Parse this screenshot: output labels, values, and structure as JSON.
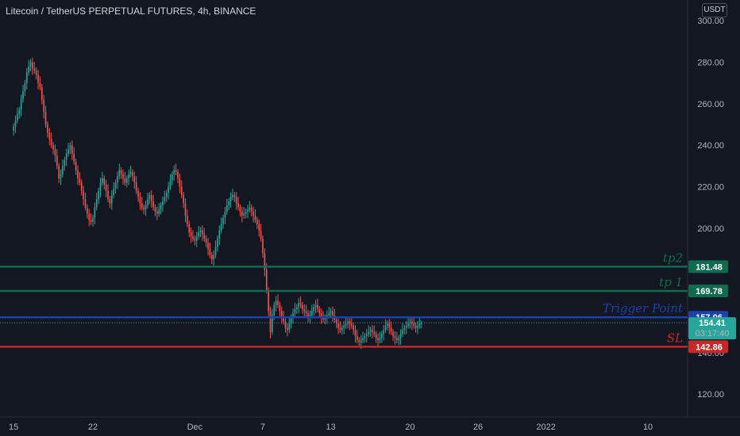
{
  "header": {
    "title": "Litecoin / TetherUS PERPETUAL FUTURES, 4h, BINANCE",
    "unit": "USDT"
  },
  "colors": {
    "background": "#131722",
    "up": "#26a69a",
    "down": "#ef5350",
    "tp": "#0f6b4e",
    "trigger": "#1e3fae",
    "sl": "#c62828",
    "price": "#26a69a"
  },
  "chart_data": {
    "type": "candlestick",
    "title": "Litecoin / TetherUS PERPETUAL FUTURES, 4h, BINANCE",
    "y_ticks": [
      "300.00",
      "280.00",
      "260.00",
      "240.00",
      "220.00",
      "200.00",
      "140.00",
      "120.00"
    ],
    "y_tick_values": [
      300,
      280,
      260,
      240,
      220,
      200,
      140,
      120
    ],
    "ylim": [
      109,
      310
    ],
    "x_ticks": [
      "15",
      "22",
      "Dec",
      "7",
      "13",
      "20",
      "26",
      "2022",
      "10"
    ],
    "x_tick_days": [
      0,
      7,
      16,
      22,
      28,
      35,
      41,
      47,
      56
    ],
    "xlim_days": [
      -1.2,
      59.5
    ],
    "x_note_day_zero": "",
    "candles_per_day": 6,
    "closes": [
      249,
      252,
      255,
      257,
      262,
      266,
      270,
      275,
      278,
      280,
      277,
      276,
      274,
      270,
      268,
      262,
      256,
      250,
      246,
      243,
      240,
      238,
      235,
      230,
      224,
      226,
      230,
      233,
      236,
      238,
      240,
      236,
      232,
      228,
      224,
      222,
      218,
      214,
      210,
      207,
      204,
      203,
      205,
      210,
      214,
      218,
      222,
      224,
      221,
      218,
      214,
      212,
      216,
      219,
      222,
      225,
      228,
      226,
      224,
      222,
      224,
      226,
      227,
      225,
      222,
      218,
      215,
      212,
      210,
      209,
      211,
      214,
      216,
      213,
      210,
      208,
      207,
      209,
      211,
      213,
      215,
      217,
      220,
      223,
      226,
      228,
      227,
      224,
      220,
      216,
      212,
      206,
      202,
      198,
      196,
      195,
      194,
      196,
      198,
      199,
      197,
      195,
      193,
      190,
      187,
      185,
      187,
      191,
      195,
      199,
      202,
      205,
      208,
      211,
      213,
      215,
      216,
      215,
      212,
      210,
      208,
      206,
      207,
      208,
      209,
      210,
      208,
      206,
      204,
      202,
      199,
      195,
      188,
      180,
      170,
      160,
      150,
      158,
      163,
      165,
      163,
      160,
      157,
      155,
      152,
      151,
      154,
      157,
      159,
      161,
      162,
      164,
      163,
      161,
      160,
      159,
      157,
      158,
      160,
      162,
      163,
      161,
      159,
      157,
      156,
      157,
      158,
      159,
      160,
      158,
      156,
      154,
      152,
      151,
      152,
      153,
      154,
      155,
      154,
      153,
      151,
      148,
      146,
      145,
      146,
      147,
      148,
      149,
      150,
      151,
      150,
      149,
      147,
      146,
      147,
      149,
      151,
      153,
      154,
      152,
      150,
      148,
      147,
      146,
      147,
      149,
      151,
      152,
      153,
      154,
      155,
      154,
      153,
      152,
      153,
      154,
      154
    ],
    "levels": [
      {
        "label": "tp2",
        "value": 181.48,
        "text": "181.48",
        "color": "#0f6b4e",
        "text_color": "#ffffff"
      },
      {
        "label": "tp 1",
        "value": 169.78,
        "text": "169.78",
        "color": "#0f6b4e",
        "text_color": "#ffffff"
      },
      {
        "label": "Trigger Point",
        "value": 157.06,
        "text": "157.06",
        "color": "#1e3fae",
        "text_color": "#ffffff"
      },
      {
        "label": "SL",
        "value": 142.86,
        "text": "142.86",
        "color": "#c62828",
        "text_color": "#ffffff"
      }
    ],
    "last_price": {
      "value": 154.41,
      "text": "154.41",
      "countdown": "03:17:40"
    }
  }
}
